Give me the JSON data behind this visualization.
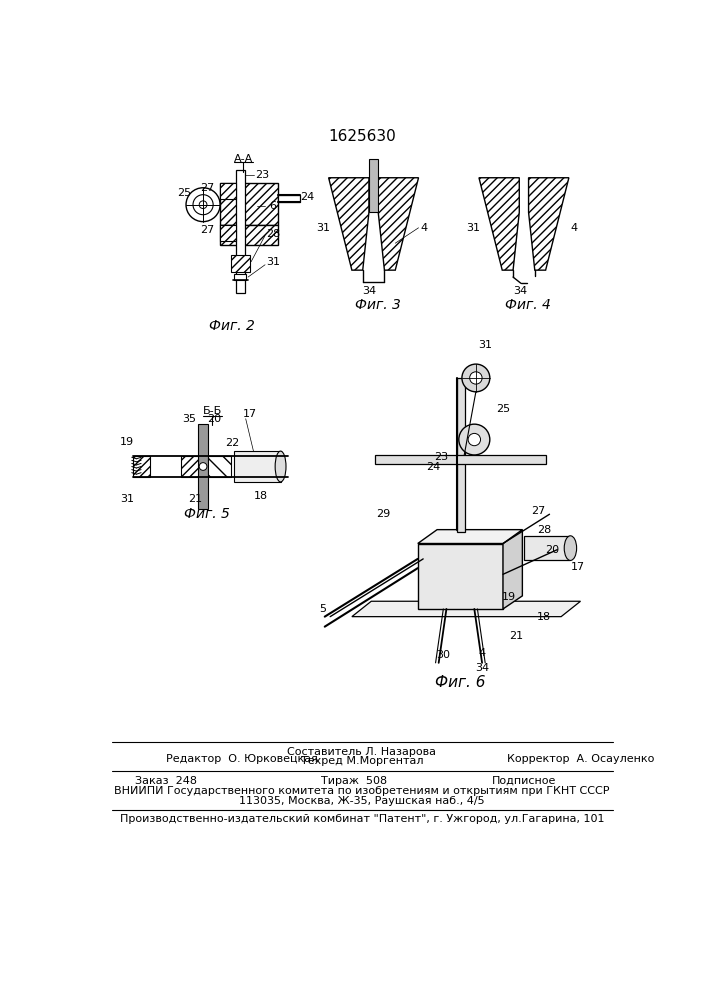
{
  "patent_number": "1625630",
  "bg_color": "#ffffff",
  "footer": {
    "line1_left": "Редактор  О. Юрковецкая",
    "line1_center_top": "Составитель Л. Назарова",
    "line1_center_bot": "Техред М.Моргентал",
    "line1_right": "Корректор  А. Осауленко",
    "line2_left": "Заказ  248",
    "line2_center": "Тираж  508",
    "line2_right": "Подписное",
    "line3": "ВНИИПИ Государственного комитета по изобретениям и открытиям при ГКНТ СССР",
    "line4": "113035, Москва, Ж-35, Раушская наб., 4/5",
    "line5": "Производственно-издательский комбинат \"Патент\", г. Ужгород, ул.Гагарина, 101"
  },
  "fig_captions": {
    "fig2": "Фиг. 2",
    "fig3": "Фиг. 3",
    "fig4": "Фиг. 4",
    "fig5": "Фиг. 5",
    "fig6": "Фиг. 6"
  }
}
